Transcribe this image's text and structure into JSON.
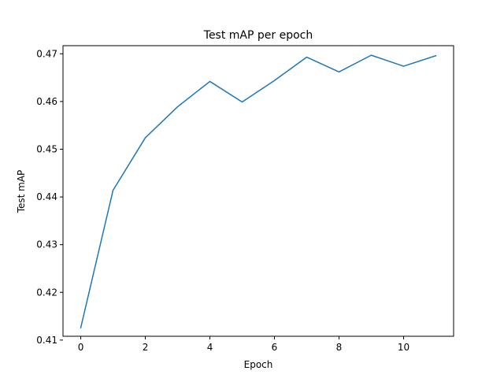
{
  "chart_data": {
    "type": "line",
    "title": "Test mAP per epoch",
    "xlabel": "Epoch",
    "ylabel": "Test mAP",
    "xlim": [
      -0.55,
      11.55
    ],
    "ylim": [
      0.4108,
      0.4717
    ],
    "x_ticks": [
      0,
      2,
      4,
      6,
      8,
      10
    ],
    "x_tick_labels": [
      "0",
      "2",
      "4",
      "6",
      "8",
      "10"
    ],
    "y_ticks": [
      0.41,
      0.42,
      0.43,
      0.44,
      0.45,
      0.46,
      0.47
    ],
    "y_tick_labels": [
      "0.41",
      "0.42",
      "0.43",
      "0.44",
      "0.45",
      "0.46",
      "0.47"
    ],
    "grid": false,
    "series": [
      {
        "color": "#1f77b4",
        "x": [
          0,
          1,
          2,
          3,
          4,
          5,
          6,
          7,
          8,
          9,
          10,
          11
        ],
        "y": [
          0.4126,
          0.4414,
          0.4524,
          0.4589,
          0.4642,
          0.4599,
          0.4644,
          0.4693,
          0.4662,
          0.4697,
          0.4674,
          0.4696
        ]
      }
    ]
  }
}
